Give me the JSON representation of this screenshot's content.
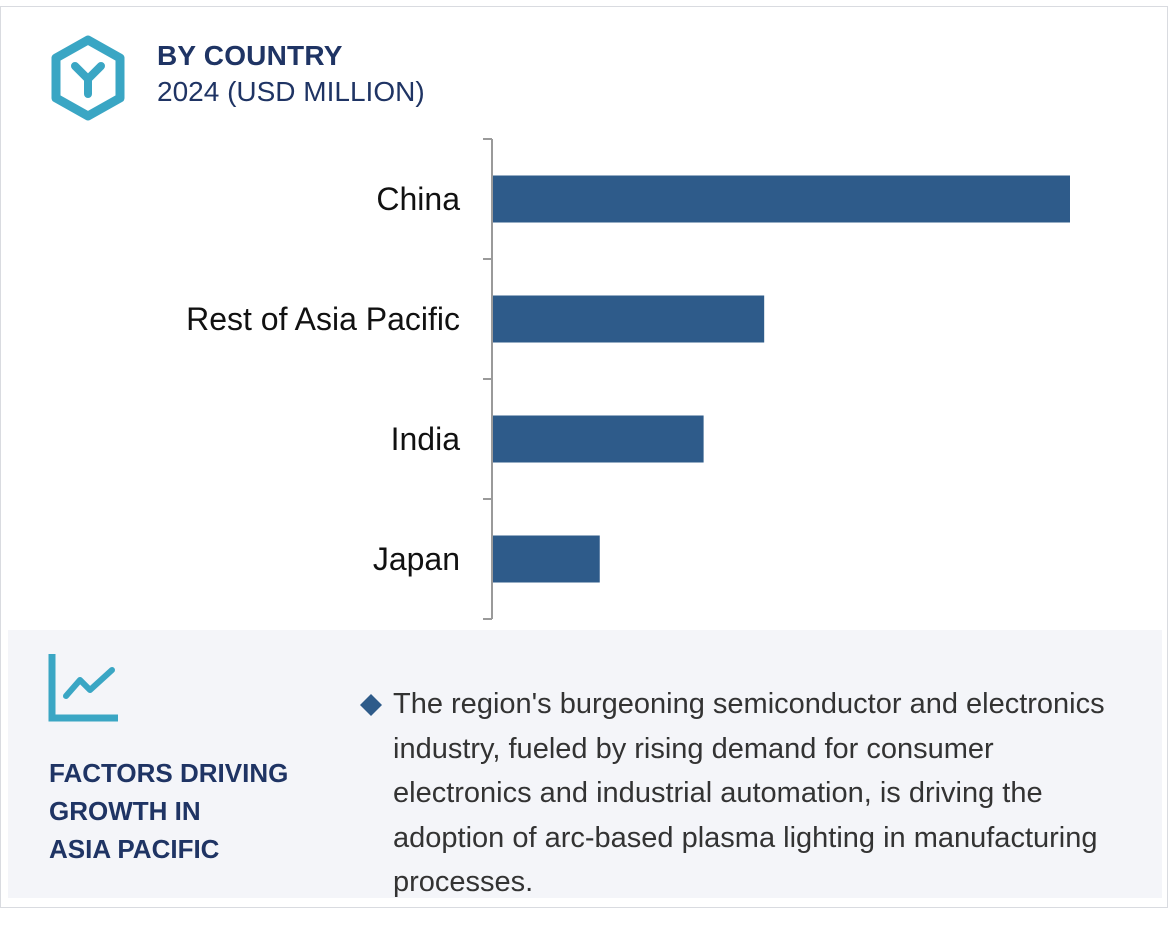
{
  "header": {
    "title": "BY COUNTRY",
    "subtitle": "2024 (USD MILLION)",
    "logo_icon": "hexagon-y-icon"
  },
  "chart_data": {
    "type": "bar",
    "orientation": "horizontal",
    "title": "BY COUNTRY",
    "subtitle": "2024 (USD MILLION)",
    "categories": [
      "China",
      "Rest of Asia Pacific",
      "India",
      "Japan"
    ],
    "values": [
      100,
      47,
      36.5,
      18.5
    ],
    "xlim": [
      0,
      100
    ],
    "value_axis_visible": false,
    "grid": false,
    "bar_color": "#2e5b8a",
    "axis_color": "#9a9a9a"
  },
  "factors": {
    "icon": "trend-chart-icon",
    "title_lines": [
      "FACTORS DRIVING",
      "GROWTH IN",
      "ASIA PACIFIC"
    ],
    "bullet_icon": "diamond-bullet-icon",
    "bullet_text": "The region's burgeoning semiconductor and electronics industry, fueled by rising demand for consumer electronics and industrial automation, is driving the adoption of arc-based plasma lighting in manufacturing processes."
  },
  "colors": {
    "title": "#1f3464",
    "accent_teal": "#3aa6c4",
    "bar": "#2e5b8a",
    "panel_bg": "#f4f5f9",
    "body_text": "#333333"
  }
}
